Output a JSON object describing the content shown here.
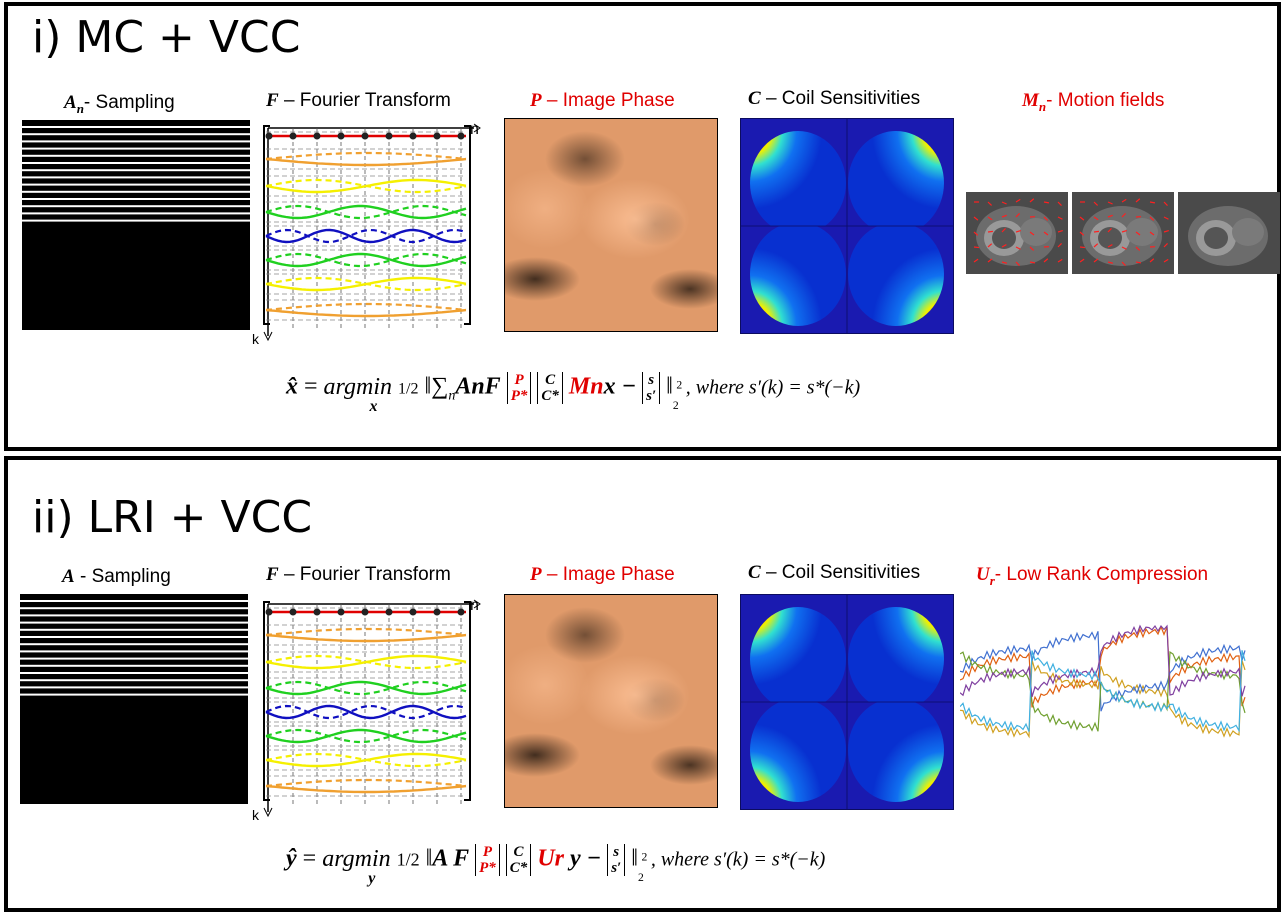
{
  "panel1": {
    "title": "i) MC + VCC",
    "labels": {
      "sampling_sym": "A",
      "sampling_sub": "n",
      "sampling_text": "- Sampling",
      "fourier_sym": "F",
      "fourier_text": " – Fourier Transform",
      "phase_sym": "P",
      "phase_text": " – Image Phase",
      "coil_sym": "C",
      "coil_text": " – Coil Sensitivities",
      "motion_sym": "M",
      "motion_sub": "n",
      "motion_text": "- Motion fields"
    },
    "axis_n": "n",
    "axis_k": "k",
    "formula": {
      "lhs": "x̂",
      "eq": " = ",
      "argmin": "argmin",
      "argmin_sub": "x",
      "half": "1/2",
      "sum": "‖∑",
      "sum_sub": "n",
      "AnF": "AnF",
      "P": "P",
      "Pstar": "P*",
      "C": "C",
      "Cstar": "C*",
      "Mn": "Mn",
      "x": "x − ",
      "s": "s",
      "sprime": "s′",
      "norm_end": "‖",
      "sq": "2",
      "norm_sub": "2",
      "where": ", where s′(k) = s*(−k)"
    }
  },
  "panel2": {
    "title": "ii) LRI + VCC",
    "labels": {
      "sampling_sym": "A",
      "sampling_text": " - Sampling",
      "fourier_sym": "F",
      "fourier_text": " – Fourier Transform",
      "phase_sym": "P",
      "phase_text": " – Image Phase",
      "coil_sym": "C",
      "coil_text": " – Coil Sensitivities",
      "lr_sym": "U",
      "lr_sub": "r",
      "lr_text": "- Low Rank Compression"
    },
    "axis_n": "n",
    "axis_k": "k",
    "formula": {
      "lhs": "ŷ",
      "eq": " = ",
      "argmin": "argmin",
      "argmin_sub": "y",
      "half": "1/2",
      "norm": "‖",
      "AF": "A F",
      "P": "P",
      "Pstar": "P*",
      "C": "C",
      "Cstar": "C*",
      "Ur": "Ur",
      "y": "y − ",
      "s": "s",
      "sprime": "s′",
      "norm_end": "‖",
      "sq": "2",
      "norm_sub": "2",
      "where": ", where s′(k) = s*(−k)"
    }
  },
  "colors": {
    "red": "#e00000",
    "orange": "#f0a030",
    "yellow": "#f5f000",
    "green": "#20d020",
    "blue": "#1010c0",
    "phase_bg": "#e09a6a"
  }
}
